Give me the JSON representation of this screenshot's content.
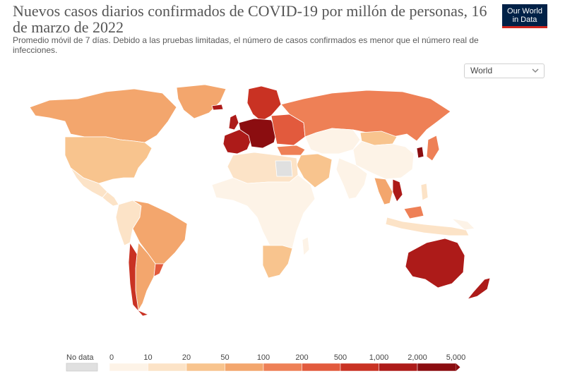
{
  "header": {
    "title": "Nuevos casos diarios confirmados de COVID-19 por millón de personas, 16 de marzo de 2022",
    "subtitle": "Promedio móvil de 7 días. Debido a las pruebas limitadas, el número de casos confirmados es menor que el número real de infecciones."
  },
  "logo": {
    "line1": "Our World",
    "line2": "in Data",
    "bg": "#002147",
    "accent": "#ce261e"
  },
  "region_select": {
    "value": "World",
    "icon": "chevron-down-icon"
  },
  "legend": {
    "no_data_label": "No data",
    "no_data_color": "#e0e0e0",
    "ticks": [
      "0",
      "10",
      "20",
      "50",
      "100",
      "200",
      "500",
      "1,000",
      "2,000",
      "5,000"
    ],
    "colors": [
      "#fdf3e7",
      "#fce3c7",
      "#f8c48e",
      "#f3a66d",
      "#ee8056",
      "#e25a3d",
      "#c93223",
      "#ad1b19",
      "#8b0d10"
    ]
  },
  "map": {
    "regions": [
      {
        "name": "Canada",
        "level": 3
      },
      {
        "name": "United States",
        "level": 2
      },
      {
        "name": "Mexico",
        "level": 1
      },
      {
        "name": "Central America",
        "level": 1
      },
      {
        "name": "Greenland",
        "level": 3
      },
      {
        "name": "Brazil",
        "level": 3
      },
      {
        "name": "Andean",
        "level": 1
      },
      {
        "name": "Argentina",
        "level": 3
      },
      {
        "name": "Chile",
        "level": 6
      },
      {
        "name": "Uruguay",
        "level": 5
      },
      {
        "name": "Western Europe",
        "level": 7
      },
      {
        "name": "Central Europe",
        "level": 8
      },
      {
        "name": "Scandinavia",
        "level": 6
      },
      {
        "name": "Eastern Europe",
        "level": 5
      },
      {
        "name": "Russia",
        "level": 4
      },
      {
        "name": "Turkey",
        "level": 4
      },
      {
        "name": "North Africa",
        "level": 1
      },
      {
        "name": "Africa",
        "level": 0
      },
      {
        "name": "Southern Africa",
        "level": 2
      },
      {
        "name": "Madagascar",
        "level": 0
      },
      {
        "name": "Middle East",
        "level": 2
      },
      {
        "name": "Central Asia",
        "level": 0
      },
      {
        "name": "Mongolia",
        "level": 2
      },
      {
        "name": "China",
        "level": 0
      },
      {
        "name": "India",
        "level": 0
      },
      {
        "name": "Southeast Asia",
        "level": 3
      },
      {
        "name": "Vietnam",
        "level": 7
      },
      {
        "name": "Korea",
        "level": 8
      },
      {
        "name": "Japan",
        "level": 4
      },
      {
        "name": "Indonesia",
        "level": 1
      },
      {
        "name": "Malaysia",
        "level": 4
      },
      {
        "name": "Australia",
        "level": 7
      },
      {
        "name": "New Zealand",
        "level": 7
      },
      {
        "name": "Iceland",
        "level": 7
      },
      {
        "name": "United Kingdom",
        "level": 7
      },
      {
        "name": "Papua New Guinea",
        "level": 0
      },
      {
        "name": "Philippines",
        "level": 1
      },
      {
        "name": "Libya",
        "level": -1
      }
    ]
  }
}
